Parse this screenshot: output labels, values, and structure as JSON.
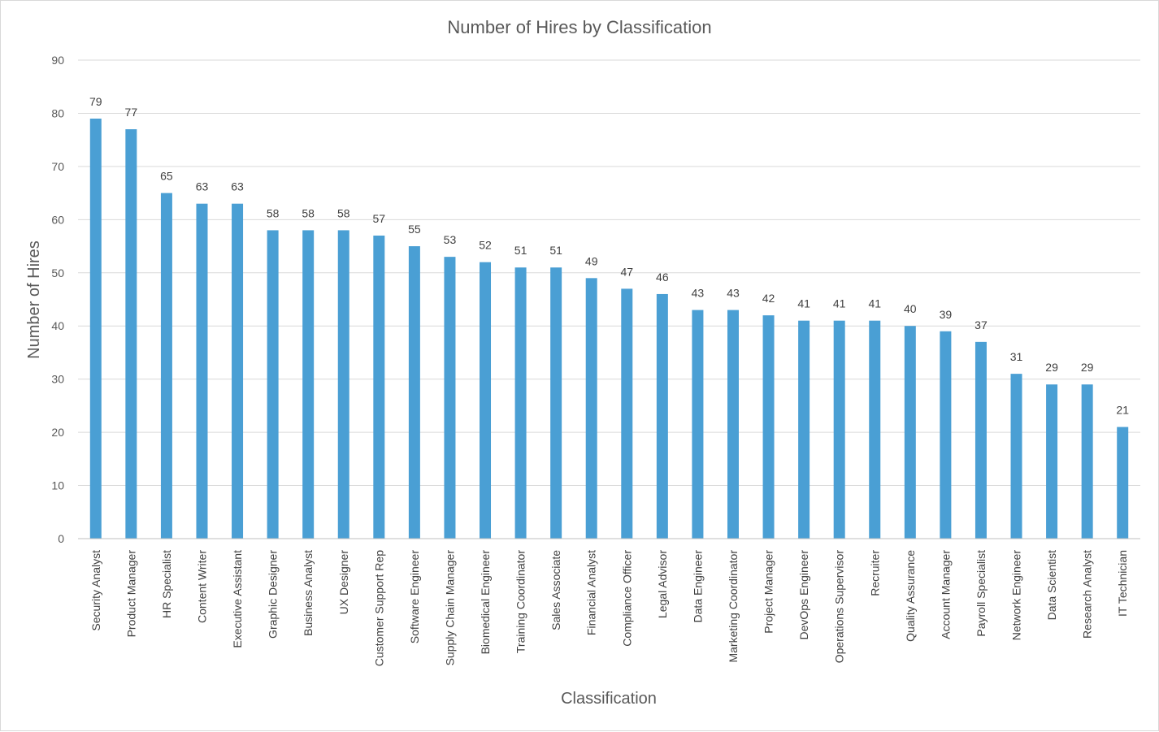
{
  "chart_data": {
    "type": "bar",
    "title": "Number of Hires by Classification",
    "xlabel": "Classification",
    "ylabel": "Number of Hires",
    "ylim": [
      0,
      90
    ],
    "yticks": [
      0,
      10,
      20,
      30,
      40,
      50,
      60,
      70,
      80,
      90
    ],
    "grid": true,
    "legend": "none",
    "bar_color": "#4a9fd4",
    "categories": [
      "Security Analyst",
      "Product Manager",
      "HR Specialist",
      "Content Writer",
      "Executive Assistant",
      "Graphic Designer",
      "Business Analyst",
      "UX Designer",
      "Customer Support Rep",
      "Software Engineer",
      "Supply Chain Manager",
      "Biomedical Engineer",
      "Training Coordinator",
      "Sales Associate",
      "Financial Analyst",
      "Compliance Officer",
      "Legal Advisor",
      "Data Engineer",
      "Marketing Coordinator",
      "Project Manager",
      "DevOps Engineer",
      "Operations Supervisor",
      "Recruiter",
      "Quality Assurance",
      "Account Manager",
      "Payroll Specialist",
      "Network Engineer",
      "Data Scientist",
      "Research Analyst",
      "IT Technician"
    ],
    "values": [
      79,
      77,
      65,
      63,
      63,
      58,
      58,
      58,
      57,
      55,
      53,
      52,
      51,
      51,
      49,
      47,
      46,
      43,
      43,
      42,
      41,
      41,
      41,
      40,
      39,
      37,
      31,
      29,
      29,
      21
    ]
  }
}
